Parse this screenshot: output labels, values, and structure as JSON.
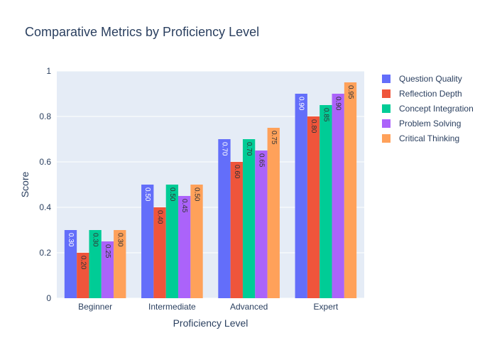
{
  "chart_data": {
    "type": "bar",
    "title": "Comparative Metrics by Proficiency Level",
    "xlabel": "Proficiency Level",
    "ylabel": "Score",
    "ylim": [
      0,
      1
    ],
    "y_ticks": [
      0,
      0.2,
      0.4,
      0.6,
      0.8,
      1
    ],
    "y_tick_labels": [
      "0",
      "0.2",
      "0.4",
      "0.6",
      "0.8",
      "1"
    ],
    "categories": [
      "Beginner",
      "Intermediate",
      "Advanced",
      "Expert"
    ],
    "grid": true,
    "legend_position": "right",
    "series": [
      {
        "name": "Question Quality",
        "color": "#636efa",
        "values": [
          0.3,
          0.5,
          0.7,
          0.9
        ],
        "labels": [
          "0.30",
          "0.50",
          "0.70",
          "0.90"
        ]
      },
      {
        "name": "Reflection Depth",
        "color": "#ef553b",
        "values": [
          0.2,
          0.4,
          0.6,
          0.8
        ],
        "labels": [
          "0.20",
          "0.40",
          "0.60",
          "0.80"
        ]
      },
      {
        "name": "Concept Integration",
        "color": "#00cc96",
        "values": [
          0.3,
          0.5,
          0.7,
          0.85
        ],
        "labels": [
          "0.30",
          "0.50",
          "0.70",
          "0.85"
        ]
      },
      {
        "name": "Problem Solving",
        "color": "#ab63fa",
        "values": [
          0.25,
          0.45,
          0.65,
          0.9
        ],
        "labels": [
          "0.25",
          "0.45",
          "0.65",
          "0.90"
        ]
      },
      {
        "name": "Critical Thinking",
        "color": "#ffa15a",
        "values": [
          0.3,
          0.5,
          0.75,
          0.95
        ],
        "labels": [
          "0.30",
          "0.50",
          "0.75",
          "0.95"
        ]
      }
    ]
  }
}
